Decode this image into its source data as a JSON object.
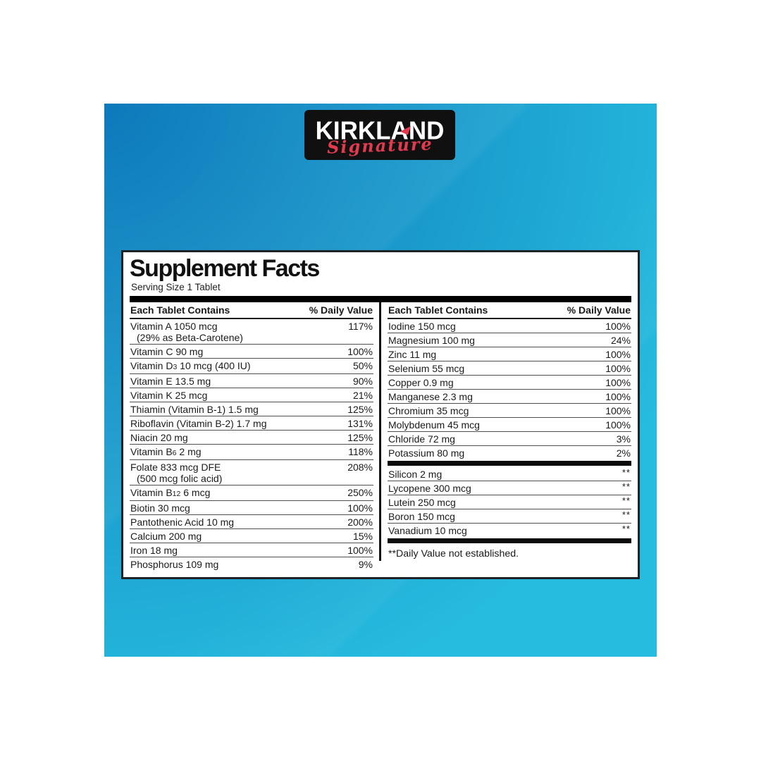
{
  "brand": {
    "name": "KIRKLAND",
    "script": "Signature"
  },
  "facts": {
    "title": "Supplement Facts",
    "serving": "Serving Size 1 Tablet",
    "header_label": "Each Tablet Contains",
    "header_value": "% Daily Value",
    "left_column": {
      "rows": [
        {
          "parts": [
            {
              "t": "Vitamin A 1050 mcg"
            }
          ],
          "line2": "(29% as Beta-Carotene)",
          "value": "117%"
        },
        {
          "parts": [
            {
              "t": "Vitamin C 90 mg"
            }
          ],
          "value": "100%"
        },
        {
          "parts": [
            {
              "t": "Vitamin D"
            },
            {
              "t": "3",
              "small": true
            },
            {
              "t": " 10 mcg (400 IU)"
            }
          ],
          "value": "50%"
        },
        {
          "parts": [
            {
              "t": "Vitamin E 13.5 mg"
            }
          ],
          "value": "90%"
        },
        {
          "parts": [
            {
              "t": "Vitamin K 25 mcg"
            }
          ],
          "value": "21%"
        },
        {
          "parts": [
            {
              "t": "Thiamin (Vitamin B-1) 1.5 mg"
            }
          ],
          "value": "125%"
        },
        {
          "parts": [
            {
              "t": "Riboflavin (Vitamin B-2) 1.7 mg"
            }
          ],
          "value": "131%"
        },
        {
          "parts": [
            {
              "t": "Niacin 20 mg"
            }
          ],
          "value": "125%"
        },
        {
          "parts": [
            {
              "t": "Vitamin B"
            },
            {
              "t": "6",
              "small": true
            },
            {
              "t": " 2 mg"
            }
          ],
          "value": "118%"
        },
        {
          "parts": [
            {
              "t": "Folate 833 mcg DFE"
            }
          ],
          "line2": "(500 mcg folic acid)",
          "value": "208%"
        },
        {
          "parts": [
            {
              "t": "Vitamin B"
            },
            {
              "t": "12",
              "small": true
            },
            {
              "t": " 6 mcg"
            }
          ],
          "value": "250%"
        },
        {
          "parts": [
            {
              "t": "Biotin 30 mcg"
            }
          ],
          "value": "100%"
        },
        {
          "parts": [
            {
              "t": "Pantothenic Acid 10 mg"
            }
          ],
          "value": "200%"
        },
        {
          "parts": [
            {
              "t": "Calcium 200 mg"
            }
          ],
          "value": "15%"
        },
        {
          "parts": [
            {
              "t": "Iron 18 mg"
            }
          ],
          "value": "100%"
        },
        {
          "parts": [
            {
              "t": "Phosphorus 109 mg"
            }
          ],
          "value": "9%"
        }
      ]
    },
    "right_column": {
      "main_rows": [
        {
          "parts": [
            {
              "t": "Iodine 150 mcg"
            }
          ],
          "value": "100%"
        },
        {
          "parts": [
            {
              "t": "Magnesium 100 mg"
            }
          ],
          "value": "24%"
        },
        {
          "parts": [
            {
              "t": "Zinc 11 mg"
            }
          ],
          "value": "100%"
        },
        {
          "parts": [
            {
              "t": "Selenium 55 mcg"
            }
          ],
          "value": "100%"
        },
        {
          "parts": [
            {
              "t": "Copper 0.9 mg"
            }
          ],
          "value": "100%"
        },
        {
          "parts": [
            {
              "t": "Manganese 2.3 mg"
            }
          ],
          "value": "100%"
        },
        {
          "parts": [
            {
              "t": "Chromium 35 mcg"
            }
          ],
          "value": "100%"
        },
        {
          "parts": [
            {
              "t": "Molybdenum 45 mcg"
            }
          ],
          "value": "100%"
        },
        {
          "parts": [
            {
              "t": "Chloride 72 mg"
            }
          ],
          "value": "3%"
        },
        {
          "parts": [
            {
              "t": "Potassium 80 mg"
            }
          ],
          "value": "2%"
        }
      ],
      "no_dv_rows": [
        {
          "parts": [
            {
              "t": "Silicon 2 mg"
            }
          ],
          "value": "**"
        },
        {
          "parts": [
            {
              "t": "Lycopene 300 mcg"
            }
          ],
          "value": "**"
        },
        {
          "parts": [
            {
              "t": "Lutein 250 mcg"
            }
          ],
          "value": "**"
        },
        {
          "parts": [
            {
              "t": "Boron 150 mcg"
            }
          ],
          "value": "**"
        },
        {
          "parts": [
            {
              "t": "Vanadium 10 mcg"
            }
          ],
          "value": "**"
        }
      ],
      "footnote": "**Daily Value not established."
    }
  },
  "colors": {
    "gradient_start": "#0d79bb",
    "gradient_mid": "#1a9acc",
    "gradient_end": "#26bcdf",
    "logo_background": "#101010",
    "signature_red": "#e23b50"
  }
}
